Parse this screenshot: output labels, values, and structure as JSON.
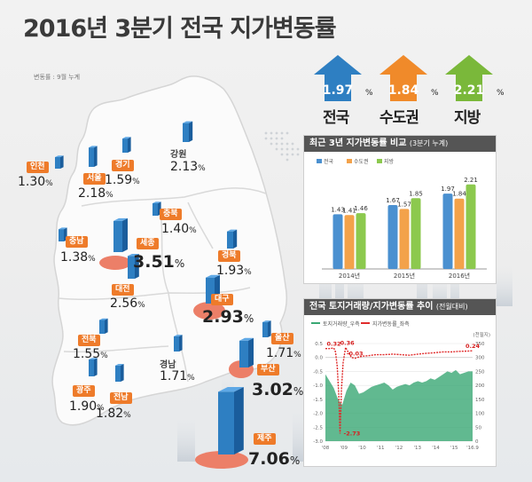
{
  "title": "2016년 3분기 전국 지가변동률",
  "note": "변동률 : 9월 누계",
  "summary": [
    {
      "name": "전국",
      "value": "1.97",
      "unit": "%",
      "color": "#2e7fc2"
    },
    {
      "name": "수도권",
      "value": "1.84",
      "unit": "%",
      "color": "#f08a2a"
    },
    {
      "name": "지방",
      "value": "2.21",
      "unit": "%",
      "color": "#7ab83a"
    }
  ],
  "regions": [
    {
      "name": "인천",
      "value": "1.30",
      "unit": "%",
      "style": "tag"
    },
    {
      "name": "서울",
      "value": "2.18",
      "unit": "%",
      "style": "tag"
    },
    {
      "name": "경기",
      "value": "1.59",
      "unit": "%",
      "style": "tag"
    },
    {
      "name": "강원",
      "value": "2.13",
      "unit": "%",
      "style": "name"
    },
    {
      "name": "충북",
      "value": "1.40",
      "unit": "%",
      "style": "tag"
    },
    {
      "name": "충남",
      "value": "1.38",
      "unit": "%",
      "style": "tag"
    },
    {
      "name": "세종",
      "value": "3.51",
      "unit": "%",
      "style": "tag"
    },
    {
      "name": "대전",
      "value": "2.56",
      "unit": "%",
      "style": "tag"
    },
    {
      "name": "경북",
      "value": "1.93",
      "unit": "%",
      "style": "tag"
    },
    {
      "name": "대구",
      "value": "2.93",
      "unit": "%",
      "style": "tag"
    },
    {
      "name": "전북",
      "value": "1.55",
      "unit": "%",
      "style": "tag"
    },
    {
      "name": "울산",
      "value": "1.71",
      "unit": "%",
      "style": "tag"
    },
    {
      "name": "경남",
      "value": "1.71",
      "unit": "%",
      "style": "name"
    },
    {
      "name": "부산",
      "value": "3.02",
      "unit": "%",
      "style": "tag"
    },
    {
      "name": "광주",
      "value": "1.90",
      "unit": "%",
      "style": "tag"
    },
    {
      "name": "전남",
      "value": "1.82",
      "unit": "%",
      "style": "tag"
    },
    {
      "name": "제주",
      "value": "7.06",
      "unit": "%",
      "style": "tag"
    }
  ],
  "region_bar_values": [
    1.3,
    2.18,
    1.59,
    2.13,
    1.4,
    1.38,
    3.51,
    2.56,
    1.93,
    2.93,
    1.55,
    1.71,
    1.71,
    3.02,
    1.9,
    1.82,
    7.06
  ],
  "chart_data": [
    {
      "type": "bar",
      "title": "최근 3년 지가변동률 비교",
      "subtitle": "(3분기 누계)",
      "categories": [
        "2014년",
        "2015년",
        "2016년"
      ],
      "series": [
        {
          "name": "전국",
          "values": [
            1.43,
            1.67,
            1.97
          ],
          "color": "#4a90d0"
        },
        {
          "name": "수도권",
          "values": [
            1.41,
            1.57,
            1.84
          ],
          "color": "#f3a24a"
        },
        {
          "name": "지방",
          "values": [
            1.46,
            1.85,
            2.21
          ],
          "color": "#8cc94e"
        }
      ],
      "ylim": [
        0,
        2.6
      ],
      "grid": false,
      "legend": "top-left"
    },
    {
      "type": "line",
      "title": "전국 토지거래량/지가변동률 추이",
      "subtitle": "(전월대비)",
      "x_ticks": [
        "'08",
        "'09",
        "'10",
        "'11",
        "'12",
        "'13",
        "'14",
        "'15",
        "'16.9"
      ],
      "left_axis": {
        "ticks": [
          "0.5",
          "0.0",
          "-0.5",
          "-1.0",
          "-1.5",
          "-2.0",
          "-2.5",
          "-3.0"
        ],
        "range": [
          -3.0,
          0.5
        ]
      },
      "right_axis": {
        "ticks": [
          "350",
          "300",
          "250",
          "200",
          "150",
          "100",
          "50",
          "0"
        ],
        "range": [
          0,
          350
        ],
        "unit": "(천필지)"
      },
      "series": [
        {
          "name": "토지거래량_우측",
          "color": "#3aa874",
          "axis": "right",
          "x": [
            2008.0,
            2008.25,
            2008.5,
            2008.75,
            2009.0,
            2009.25,
            2009.5,
            2009.75,
            2010.0,
            2010.25,
            2010.5,
            2010.75,
            2011.0,
            2011.25,
            2011.5,
            2011.75,
            2012.0,
            2012.25,
            2012.5,
            2012.75,
            2013.0,
            2013.25,
            2013.5,
            2013.75,
            2014.0,
            2014.25,
            2014.5,
            2014.75,
            2015.0,
            2015.25,
            2015.5,
            2015.75,
            2016.0,
            2016.25,
            2016.5,
            2016.75
          ],
          "values": [
            240,
            215,
            190,
            150,
            130,
            180,
            210,
            200,
            170,
            175,
            185,
            195,
            200,
            205,
            210,
            200,
            185,
            195,
            200,
            205,
            200,
            210,
            215,
            210,
            215,
            225,
            220,
            230,
            240,
            250,
            245,
            255,
            240,
            245,
            250,
            250
          ]
        },
        {
          "name": "지가변동률_좌측",
          "color": "#e02b2b",
          "axis": "left",
          "x": [
            2008.0,
            2008.25,
            2008.5,
            2008.6,
            2008.7,
            2008.8,
            2008.87,
            2008.95,
            2009.05,
            2009.2,
            2009.35,
            2009.55,
            2009.75,
            2010.0,
            2010.25,
            2010.5,
            2010.75,
            2011.0,
            2011.5,
            2012.0,
            2012.5,
            2013.0,
            2013.5,
            2014.0,
            2014.5,
            2015.0,
            2015.5,
            2016.0,
            2016.5,
            2016.75
          ],
          "values": [
            0.32,
            0.32,
            0.34,
            0.2,
            -0.3,
            -1.4,
            -2.73,
            -1.2,
            -0.2,
            0.36,
            0.2,
            0.0,
            -0.03,
            0.02,
            0.05,
            0.06,
            0.08,
            0.1,
            0.1,
            0.12,
            0.1,
            0.08,
            0.12,
            0.15,
            0.17,
            0.2,
            0.2,
            0.22,
            0.23,
            0.24
          ]
        }
      ],
      "annotations": [
        {
          "text": "0.32",
          "x": 2008.5,
          "y": 0.32
        },
        {
          "text": "0.36",
          "x": 2009.3,
          "y": 0.36
        },
        {
          "text": "-0.03",
          "x": 2009.75,
          "y": -0.03
        },
        {
          "text": "-2.73",
          "x": 2008.87,
          "y": -2.73
        },
        {
          "text": "0.24",
          "x": 2016.75,
          "y": 0.24
        }
      ]
    }
  ]
}
